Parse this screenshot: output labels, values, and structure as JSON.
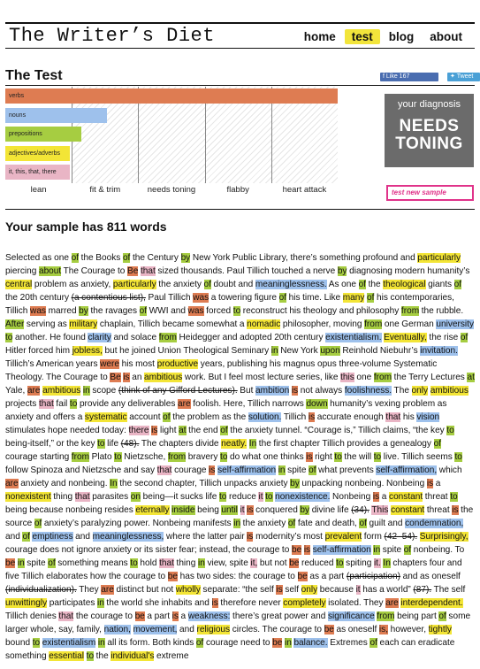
{
  "site": {
    "title": "The Writer’s Diet",
    "nav": [
      {
        "label": "home",
        "active": false
      },
      {
        "label": "test",
        "active": true
      },
      {
        "label": "blog",
        "active": false
      },
      {
        "label": "about",
        "active": false
      }
    ]
  },
  "test": {
    "title": "The Test",
    "social": {
      "like": "Like 167",
      "tweet": "Tweet"
    }
  },
  "chart_data": {
    "type": "bar",
    "orientation": "horizontal",
    "categories": [
      "verbs",
      "nouns",
      "prepositions",
      "adjectives/adverbs",
      "it, this, that, there"
    ],
    "values": [
      1.0,
      0.305,
      0.23,
      0.195,
      0.195
    ],
    "colors": [
      "#de7c52",
      "#9ec1ec",
      "#a6cd41",
      "#f3e536",
      "#e9b5c5"
    ],
    "scale_labels": [
      "lean",
      "fit & trim",
      "needs toning",
      "flabby",
      "heart attack"
    ],
    "grid": true
  },
  "diagnosis": {
    "label": "your diagnosis",
    "result_line1": "NEEDS",
    "result_line2": "TONING",
    "new_sample": "test new sample"
  },
  "sample": {
    "heading": "Your sample has 811 words",
    "legend_colors": {
      "v": "#de7c52",
      "n": "#9ec1ec",
      "p": "#a6cd41",
      "a": "#f3e536",
      "t": "#e9b5c5"
    },
    "segments": [
      [
        "Selected as one ",
        ""
      ],
      [
        "of",
        "p"
      ],
      [
        " the Books ",
        ""
      ],
      [
        "of",
        "p"
      ],
      [
        " the Century ",
        ""
      ],
      [
        "by",
        "p"
      ],
      [
        " New York Public Library, there’s something profound and ",
        ""
      ],
      [
        "particularly",
        "a"
      ],
      [
        " piercing ",
        ""
      ],
      [
        "about",
        "p"
      ],
      [
        " The Courage to ",
        ""
      ],
      [
        "Be",
        "v"
      ],
      [
        " ",
        ""
      ],
      [
        "that",
        "t"
      ],
      [
        " sized thousands. Paul Tillich touched a nerve ",
        ""
      ],
      [
        "by",
        "p"
      ],
      [
        " diagnosing modern humanity’s ",
        ""
      ],
      [
        "central",
        "a"
      ],
      [
        " problem as anxiety, ",
        ""
      ],
      [
        "particularly",
        "a"
      ],
      [
        " the anxiety ",
        ""
      ],
      [
        "of",
        "p"
      ],
      [
        " doubt and ",
        ""
      ],
      [
        "meaninglessness.",
        "n"
      ],
      [
        " As one ",
        ""
      ],
      [
        "of",
        "p"
      ],
      [
        " the ",
        ""
      ],
      [
        "theological",
        "a"
      ],
      [
        " giants ",
        ""
      ],
      [
        "of",
        "p"
      ],
      [
        " the 20th century ",
        ""
      ],
      [
        "(a contentious list),",
        "x"
      ],
      [
        " Paul Tillich ",
        ""
      ],
      [
        "was",
        "v"
      ],
      [
        " a towering figure ",
        ""
      ],
      [
        "of",
        "p"
      ],
      [
        " his time. Like ",
        ""
      ],
      [
        "many",
        "a"
      ],
      [
        " ",
        ""
      ],
      [
        "of",
        "p"
      ],
      [
        " his contemporaries, Tillich ",
        ""
      ],
      [
        "was",
        "v"
      ],
      [
        " marred ",
        ""
      ],
      [
        "by",
        "p"
      ],
      [
        " the ravages ",
        ""
      ],
      [
        "of",
        "p"
      ],
      [
        " WWI and ",
        ""
      ],
      [
        "was",
        "v"
      ],
      [
        " forced ",
        ""
      ],
      [
        "to",
        "p"
      ],
      [
        " reconstruct his theology and philosophy ",
        ""
      ],
      [
        "from",
        "p"
      ],
      [
        " the rubble. ",
        ""
      ],
      [
        "After",
        "p"
      ],
      [
        " serving as ",
        ""
      ],
      [
        "military",
        "a"
      ],
      [
        " chaplain, Tillich became somewhat a ",
        ""
      ],
      [
        "nomadic",
        "a"
      ],
      [
        " philosopher, moving ",
        ""
      ],
      [
        "from",
        "p"
      ],
      [
        " one German ",
        ""
      ],
      [
        "university",
        "n"
      ],
      [
        " ",
        ""
      ],
      [
        "to",
        "p"
      ],
      [
        " another. He found ",
        ""
      ],
      [
        "clarity",
        "n"
      ],
      [
        " and solace ",
        ""
      ],
      [
        "from",
        "p"
      ],
      [
        " Heidegger and adopted 20th century ",
        ""
      ],
      [
        "existentialism.",
        "n"
      ],
      [
        " ",
        ""
      ],
      [
        "Eventually,",
        "a"
      ],
      [
        " the rise ",
        ""
      ],
      [
        "of",
        "p"
      ],
      [
        " Hitler forced him ",
        ""
      ],
      [
        "jobless,",
        "a"
      ],
      [
        " but he joined Union Theological Seminary ",
        ""
      ],
      [
        "in",
        "p"
      ],
      [
        " New York ",
        ""
      ],
      [
        "upon",
        "p"
      ],
      [
        " Reinhold Niebuhr’s ",
        ""
      ],
      [
        "invitation.",
        "n"
      ],
      [
        " Tillich’s American years ",
        ""
      ],
      [
        "were",
        "v"
      ],
      [
        " his most ",
        ""
      ],
      [
        "productive",
        "a"
      ],
      [
        " years, publishing his magnus opus three-volume Systematic Theology. The Courage to ",
        ""
      ],
      [
        "Be",
        "v"
      ],
      [
        " ",
        ""
      ],
      [
        "is",
        "v"
      ],
      [
        " an ",
        ""
      ],
      [
        "ambitious",
        "a"
      ],
      [
        " work. But I feel most lecture series, like ",
        ""
      ],
      [
        "this",
        "t"
      ],
      [
        " one ",
        ""
      ],
      [
        "from",
        "p"
      ],
      [
        " the Terry Lectures ",
        ""
      ],
      [
        "at",
        "p"
      ],
      [
        " Yale, ",
        ""
      ],
      [
        "are",
        "v"
      ],
      [
        " ",
        ""
      ],
      [
        "ambitious",
        "a"
      ],
      [
        " ",
        ""
      ],
      [
        "in",
        "p"
      ],
      [
        " scope ",
        ""
      ],
      [
        "(think of any Gifford Lectures).",
        "x"
      ],
      [
        " But ",
        ""
      ],
      [
        "ambition",
        "n"
      ],
      [
        " ",
        ""
      ],
      [
        "is",
        "v"
      ],
      [
        " not always ",
        ""
      ],
      [
        "foolishness.",
        "n"
      ],
      [
        " The ",
        ""
      ],
      [
        "only",
        "a"
      ],
      [
        " ",
        ""
      ],
      [
        "ambitious",
        "a"
      ],
      [
        " projects ",
        ""
      ],
      [
        "that",
        "t"
      ],
      [
        " fail ",
        ""
      ],
      [
        "to",
        "p"
      ],
      [
        " provide any deliverables ",
        ""
      ],
      [
        "are",
        "v"
      ],
      [
        " foolish. Here, Tillich narrows ",
        ""
      ],
      [
        "down",
        "p"
      ],
      [
        " humanity’s vexing problem as anxiety and offers a ",
        ""
      ],
      [
        "systematic",
        "a"
      ],
      [
        " account ",
        ""
      ],
      [
        "of",
        "p"
      ],
      [
        " the problem as the ",
        ""
      ],
      [
        "solution.",
        "n"
      ],
      [
        " Tillich ",
        ""
      ],
      [
        "is",
        "v"
      ],
      [
        " accurate enough ",
        ""
      ],
      [
        "that",
        "t"
      ],
      [
        " his ",
        ""
      ],
      [
        "vision",
        "n"
      ],
      [
        " stimulates hope needed today: ",
        ""
      ],
      [
        "there",
        "t"
      ],
      [
        " ",
        ""
      ],
      [
        "is",
        "v"
      ],
      [
        " light ",
        ""
      ],
      [
        "at",
        "p"
      ],
      [
        " the end ",
        ""
      ],
      [
        "of",
        "p"
      ],
      [
        " the anxiety tunnel. “Courage is,” Tillich claims, “the key ",
        ""
      ],
      [
        "to",
        "p"
      ],
      [
        " being-itself,” or the key ",
        ""
      ],
      [
        "to",
        "p"
      ],
      [
        " life ",
        ""
      ],
      [
        "(48).",
        "x"
      ],
      [
        " The chapters divide ",
        ""
      ],
      [
        "neatly.",
        "a"
      ],
      [
        " ",
        ""
      ],
      [
        "In",
        "p"
      ],
      [
        " the first chapter Tillich provides a genealogy ",
        ""
      ],
      [
        "of",
        "p"
      ],
      [
        " courage starting ",
        ""
      ],
      [
        "from",
        "p"
      ],
      [
        " Plato ",
        ""
      ],
      [
        "to",
        "p"
      ],
      [
        " Nietzsche, ",
        ""
      ],
      [
        "from",
        "p"
      ],
      [
        " bravery ",
        ""
      ],
      [
        "to",
        "p"
      ],
      [
        " do what one thinks ",
        ""
      ],
      [
        "is",
        "v"
      ],
      [
        " right ",
        ""
      ],
      [
        "to",
        "p"
      ],
      [
        " the will ",
        ""
      ],
      [
        "to",
        "p"
      ],
      [
        " live. Tillich seems ",
        ""
      ],
      [
        "to",
        "p"
      ],
      [
        " follow Spinoza and Nietzsche and say ",
        ""
      ],
      [
        "that",
        "t"
      ],
      [
        " courage ",
        ""
      ],
      [
        "is",
        "v"
      ],
      [
        " ",
        ""
      ],
      [
        "self-affirmation",
        "n"
      ],
      [
        " ",
        ""
      ],
      [
        "in",
        "p"
      ],
      [
        " spite ",
        ""
      ],
      [
        "of",
        "p"
      ],
      [
        " what prevents ",
        ""
      ],
      [
        "self-affirmation,",
        "n"
      ],
      [
        " which ",
        ""
      ],
      [
        "are",
        "v"
      ],
      [
        " anxiety and nonbeing. ",
        ""
      ],
      [
        "In",
        "p"
      ],
      [
        " the second chapter, Tillich unpacks anxiety ",
        ""
      ],
      [
        "by",
        "p"
      ],
      [
        " unpacking nonbeing. Nonbeing ",
        ""
      ],
      [
        "is",
        "v"
      ],
      [
        " a ",
        ""
      ],
      [
        "nonexistent",
        "a"
      ],
      [
        " thing ",
        ""
      ],
      [
        "that",
        "t"
      ],
      [
        " parasites ",
        ""
      ],
      [
        "on",
        "p"
      ],
      [
        " being—it sucks life ",
        ""
      ],
      [
        "to",
        "p"
      ],
      [
        " reduce ",
        ""
      ],
      [
        "it",
        "t"
      ],
      [
        " ",
        ""
      ],
      [
        "to",
        "p"
      ],
      [
        " ",
        ""
      ],
      [
        "nonexistence.",
        "n"
      ],
      [
        " Nonbeing ",
        ""
      ],
      [
        "is",
        "v"
      ],
      [
        " a ",
        ""
      ],
      [
        "constant",
        "a"
      ],
      [
        " threat ",
        ""
      ],
      [
        "to",
        "p"
      ],
      [
        " being because nonbeing resides ",
        ""
      ],
      [
        "eternally",
        "a"
      ],
      [
        " ",
        ""
      ],
      [
        "inside",
        "p"
      ],
      [
        " being ",
        ""
      ],
      [
        "until",
        "p"
      ],
      [
        " ",
        ""
      ],
      [
        "it",
        "t"
      ],
      [
        " ",
        ""
      ],
      [
        "is",
        "v"
      ],
      [
        " conquered ",
        ""
      ],
      [
        "by",
        "p"
      ],
      [
        " divine life ",
        ""
      ],
      [
        "(34).",
        "x"
      ],
      [
        " ",
        ""
      ],
      [
        "This",
        "t"
      ],
      [
        " ",
        ""
      ],
      [
        "constant",
        "a"
      ],
      [
        " threat ",
        ""
      ],
      [
        "is",
        "v"
      ],
      [
        " the source ",
        ""
      ],
      [
        "of",
        "p"
      ],
      [
        " anxiety’s paralyzing power. Nonbeing manifests ",
        ""
      ],
      [
        "in",
        "p"
      ],
      [
        " the anxiety ",
        ""
      ],
      [
        "of",
        "p"
      ],
      [
        " fate and death, ",
        ""
      ],
      [
        "of",
        "p"
      ],
      [
        " guilt and ",
        ""
      ],
      [
        "condemnation,",
        "n"
      ],
      [
        " and ",
        ""
      ],
      [
        "of",
        "p"
      ],
      [
        " ",
        ""
      ],
      [
        "emptiness",
        "n"
      ],
      [
        " and ",
        ""
      ],
      [
        "meaninglessness,",
        "n"
      ],
      [
        " where the latter pair ",
        ""
      ],
      [
        "is",
        "v"
      ],
      [
        " modernity’s most ",
        ""
      ],
      [
        "prevalent",
        "a"
      ],
      [
        " form ",
        ""
      ],
      [
        "(42–54).",
        "x"
      ],
      [
        " ",
        ""
      ],
      [
        "Surprisingly,",
        "a"
      ],
      [
        " courage does not ignore anxiety or its sister fear; instead, the courage to ",
        ""
      ],
      [
        "be",
        "v"
      ],
      [
        " ",
        ""
      ],
      [
        "is",
        "v"
      ],
      [
        " ",
        ""
      ],
      [
        "self-affirmation",
        "n"
      ],
      [
        " ",
        ""
      ],
      [
        "in",
        "p"
      ],
      [
        " spite ",
        ""
      ],
      [
        "of",
        "p"
      ],
      [
        " nonbeing. To ",
        ""
      ],
      [
        "be",
        "v"
      ],
      [
        " ",
        ""
      ],
      [
        "in",
        "p"
      ],
      [
        " spite ",
        ""
      ],
      [
        "of",
        "p"
      ],
      [
        " something means ",
        ""
      ],
      [
        "to",
        "p"
      ],
      [
        " hold ",
        ""
      ],
      [
        "that",
        "t"
      ],
      [
        " thing ",
        ""
      ],
      [
        "in",
        "p"
      ],
      [
        " view, spite ",
        ""
      ],
      [
        "it,",
        "t"
      ],
      [
        " but not ",
        ""
      ],
      [
        "be",
        "v"
      ],
      [
        " reduced ",
        ""
      ],
      [
        "to",
        "p"
      ],
      [
        " spiting ",
        ""
      ],
      [
        "it.",
        "t"
      ],
      [
        " ",
        ""
      ],
      [
        "In",
        "p"
      ],
      [
        " chapters four and five Tillich elaborates how the courage to ",
        ""
      ],
      [
        "be",
        "v"
      ],
      [
        " has two sides: the courage to ",
        ""
      ],
      [
        "be",
        "v"
      ],
      [
        " as a part ",
        ""
      ],
      [
        "(participation)",
        "x"
      ],
      [
        " and as oneself ",
        ""
      ],
      [
        "(individualization).",
        "x"
      ],
      [
        " They ",
        ""
      ],
      [
        "are",
        "v"
      ],
      [
        " distinct but not ",
        ""
      ],
      [
        "wholly",
        "a"
      ],
      [
        " separate: “the self ",
        ""
      ],
      [
        "is",
        "v"
      ],
      [
        " self ",
        ""
      ],
      [
        "only",
        "a"
      ],
      [
        " because ",
        ""
      ],
      [
        "it",
        "t"
      ],
      [
        " has a world” ",
        ""
      ],
      [
        "(87).",
        "x"
      ],
      [
        " The self ",
        ""
      ],
      [
        "unwittingly",
        "a"
      ],
      [
        " participates ",
        ""
      ],
      [
        "in",
        "p"
      ],
      [
        " the world she inhabits and ",
        ""
      ],
      [
        "is",
        "v"
      ],
      [
        " therefore never ",
        ""
      ],
      [
        "completely",
        "a"
      ],
      [
        " isolated. They ",
        ""
      ],
      [
        "are",
        "v"
      ],
      [
        " ",
        ""
      ],
      [
        "interdependent.",
        "a"
      ],
      [
        " Tillich denies ",
        ""
      ],
      [
        "that",
        "t"
      ],
      [
        " the courage to ",
        ""
      ],
      [
        "be",
        "v"
      ],
      [
        " a part ",
        ""
      ],
      [
        "is",
        "v"
      ],
      [
        " a ",
        ""
      ],
      [
        "weakness:",
        "n"
      ],
      [
        " there’s great power and ",
        ""
      ],
      [
        "significance",
        "n"
      ],
      [
        " ",
        ""
      ],
      [
        "from",
        "p"
      ],
      [
        " being part ",
        ""
      ],
      [
        "of",
        "p"
      ],
      [
        " some larger whole, say, family, ",
        ""
      ],
      [
        "nation,",
        "n"
      ],
      [
        " ",
        ""
      ],
      [
        "movement,",
        "n"
      ],
      [
        " and ",
        ""
      ],
      [
        "religious",
        "a"
      ],
      [
        " circles. The courage to ",
        ""
      ],
      [
        "be",
        "v"
      ],
      [
        " as oneself ",
        ""
      ],
      [
        "is,",
        "v"
      ],
      [
        " however, ",
        ""
      ],
      [
        "tightly",
        "a"
      ],
      [
        " bound ",
        ""
      ],
      [
        "to",
        "p"
      ],
      [
        " ",
        ""
      ],
      [
        "existentialism",
        "n"
      ],
      [
        " ",
        ""
      ],
      [
        "in",
        "p"
      ],
      [
        " all its form. Both kinds ",
        ""
      ],
      [
        "of",
        "p"
      ],
      [
        " courage need to ",
        ""
      ],
      [
        "be",
        "v"
      ],
      [
        " ",
        ""
      ],
      [
        "in",
        "p"
      ],
      [
        " ",
        ""
      ],
      [
        "balance.",
        "n"
      ],
      [
        " Extremes ",
        ""
      ],
      [
        "of",
        "p"
      ],
      [
        " each can eradicate something ",
        ""
      ],
      [
        "essential",
        "a"
      ],
      [
        " ",
        ""
      ],
      [
        "to",
        "p"
      ],
      [
        " the ",
        ""
      ],
      [
        "individual's",
        "a"
      ],
      [
        " extreme",
        ""
      ]
    ]
  }
}
